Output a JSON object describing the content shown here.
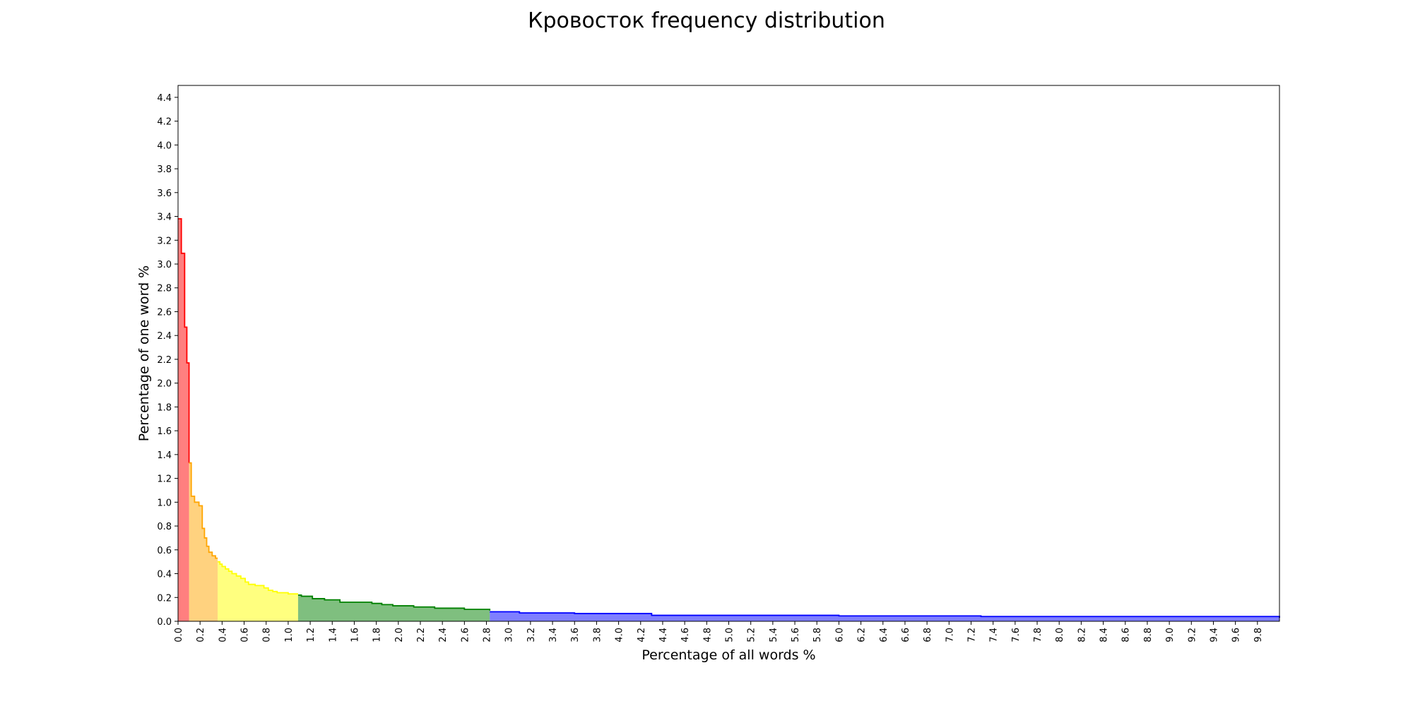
{
  "chart_data": {
    "type": "area",
    "title": "Кровосток frequency distribution",
    "xlabel": "Percentage of all words %",
    "ylabel": "Percentage of one word %",
    "xlim": [
      0,
      10
    ],
    "ylim": [
      0,
      4.5
    ],
    "x_ticks": [
      "0.0",
      "0.2",
      "0.4",
      "0.6",
      "0.8",
      "1.0",
      "1.2",
      "1.4",
      "1.6",
      "1.8",
      "2.0",
      "2.2",
      "2.4",
      "2.6",
      "2.8",
      "3.0",
      "3.2",
      "3.4",
      "3.6",
      "3.8",
      "4.0",
      "4.2",
      "4.4",
      "4.6",
      "4.8",
      "5.0",
      "5.2",
      "5.4",
      "5.6",
      "5.8",
      "6.0",
      "6.2",
      "6.4",
      "6.6",
      "6.8",
      "7.0",
      "7.2",
      "7.4",
      "7.6",
      "7.8",
      "8.0",
      "8.2",
      "8.4",
      "8.6",
      "8.8",
      "9.0",
      "9.2",
      "9.4",
      "9.6",
      "9.8"
    ],
    "y_ticks": [
      "0.0",
      "0.2",
      "0.4",
      "0.6",
      "0.8",
      "1.0",
      "1.2",
      "1.4",
      "1.6",
      "1.8",
      "2.0",
      "2.2",
      "2.4",
      "2.6",
      "2.8",
      "3.0",
      "3.2",
      "3.4",
      "3.6",
      "3.8",
      "4.0",
      "4.2",
      "4.4"
    ],
    "grid": false,
    "series": [
      {
        "color": "#ff0000",
        "x": [
          0.0,
          0.03,
          0.06,
          0.08,
          0.1
        ],
        "y": [
          3.38,
          3.09,
          2.47,
          2.17,
          1.33
        ]
      },
      {
        "color": "#ffa500",
        "x": [
          0.1,
          0.12,
          0.15,
          0.19,
          0.22,
          0.24,
          0.26,
          0.28,
          0.31,
          0.34,
          0.36
        ],
        "y": [
          1.33,
          1.05,
          1.0,
          0.97,
          0.78,
          0.7,
          0.63,
          0.58,
          0.55,
          0.53,
          0.53
        ]
      },
      {
        "color": "#ffff00",
        "x": [
          0.36,
          0.38,
          0.4,
          0.43,
          0.46,
          0.49,
          0.53,
          0.57,
          0.61,
          0.64,
          0.7,
          0.78,
          0.82,
          0.86,
          0.9,
          0.94,
          1.0,
          1.09
        ],
        "y": [
          0.5,
          0.48,
          0.46,
          0.44,
          0.42,
          0.4,
          0.38,
          0.36,
          0.33,
          0.31,
          0.3,
          0.28,
          0.26,
          0.25,
          0.24,
          0.24,
          0.23,
          0.23
        ]
      },
      {
        "color": "#008000",
        "x": [
          1.09,
          1.12,
          1.22,
          1.33,
          1.47,
          1.67,
          1.76,
          1.85,
          1.95,
          2.14,
          2.33,
          2.6,
          2.83
        ],
        "y": [
          0.22,
          0.21,
          0.19,
          0.18,
          0.16,
          0.16,
          0.15,
          0.14,
          0.13,
          0.12,
          0.11,
          0.1,
          0.09
        ]
      },
      {
        "color": "#0000ff",
        "x": [
          2.83,
          3.1,
          3.6,
          4.3,
          6.0,
          7.29,
          8.83,
          10.0
        ],
        "y": [
          0.08,
          0.07,
          0.065,
          0.05,
          0.045,
          0.04,
          0.04,
          0.03
        ]
      }
    ]
  }
}
